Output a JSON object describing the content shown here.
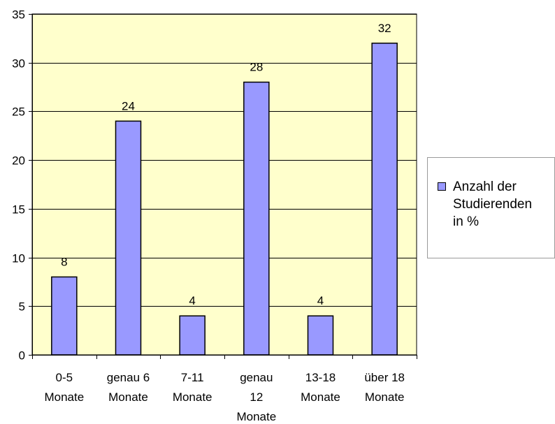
{
  "chart_data": {
    "type": "bar",
    "categories": [
      [
        "0-5",
        "Monate"
      ],
      [
        "genau 6",
        "Monate"
      ],
      [
        "7-11",
        "Monate"
      ],
      [
        "genau",
        "12",
        "Monate"
      ],
      [
        "13-18",
        "Monate"
      ],
      [
        "über 18",
        "Monate"
      ]
    ],
    "series": [
      {
        "name": "Anzahl der Studierenden in %",
        "values": [
          8,
          24,
          4,
          28,
          4,
          32
        ]
      }
    ],
    "ylim": [
      0,
      35
    ],
    "yticks": [
      0,
      5,
      10,
      15,
      20,
      25,
      30,
      35
    ],
    "grid": true,
    "legend": "right",
    "colors": {
      "plot_background": "#ffffcc",
      "bar_fill": "#9999ff",
      "bar_stroke": "#000000",
      "gridline": "#000000"
    }
  },
  "legend": {
    "lines": [
      "Anzahl der",
      "Studierenden",
      "in %"
    ]
  }
}
